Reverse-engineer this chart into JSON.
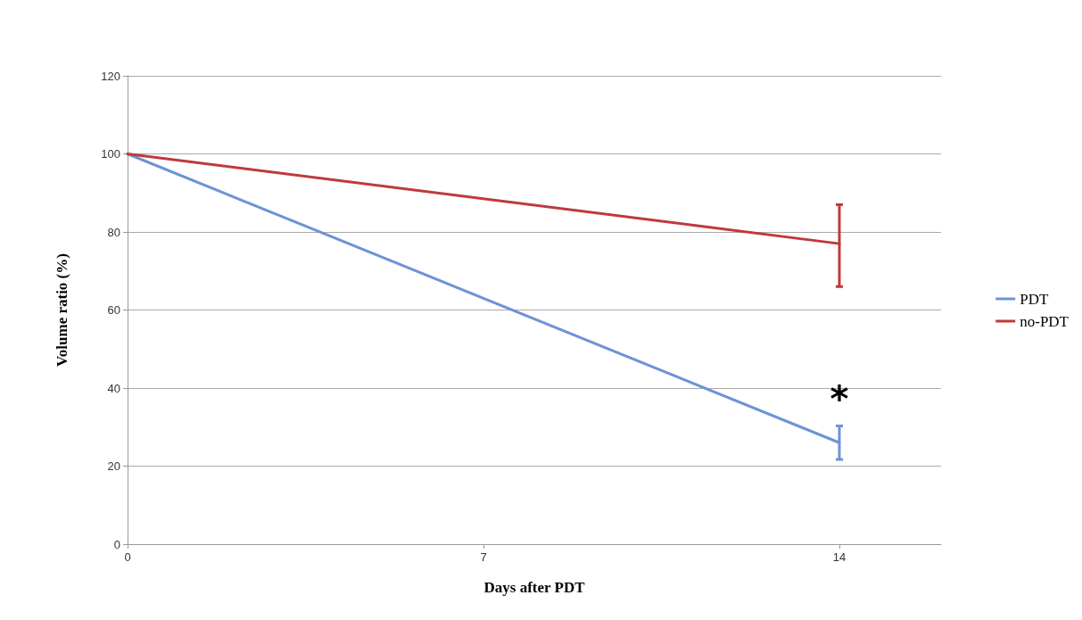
{
  "chart_data": {
    "type": "line",
    "xlabel": "Days after PDT",
    "ylabel": "Volume ratio (%)",
    "xlim": [
      0,
      16
    ],
    "xticks": [
      0,
      7,
      14
    ],
    "ylim": [
      0,
      120
    ],
    "yticks": [
      0,
      20,
      40,
      60,
      80,
      100,
      120
    ],
    "x": [
      0,
      14
    ],
    "series": [
      {
        "name": "PDT",
        "color": "#6d93d6",
        "values": [
          100,
          26
        ],
        "errors": [
          null,
          4.3
        ]
      },
      {
        "name": "no-PDT",
        "color": "#c0393b",
        "values": [
          100,
          77
        ],
        "errors": [
          null,
          [
            66,
            87
          ]
        ]
      }
    ],
    "annotations": [
      {
        "text": "*",
        "x": 14,
        "y": 30.3
      }
    ],
    "grid": "y",
    "legend": "right",
    "marker": "none",
    "line_style": "solid"
  }
}
